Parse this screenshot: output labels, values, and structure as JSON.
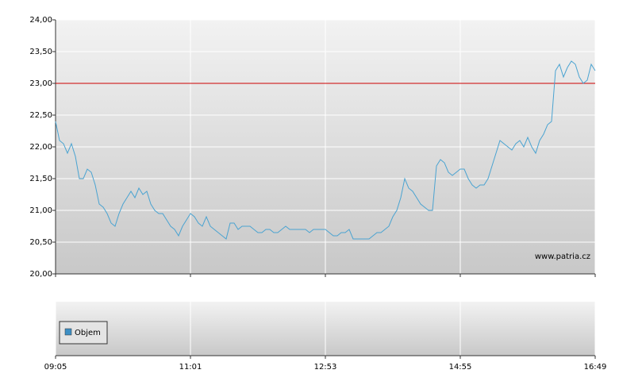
{
  "chart_data": [
    {
      "type": "line",
      "color": "#4aa3d1",
      "source": "www.patria.cz",
      "reference_line": 23,
      "reference_color": "#cc0000",
      "xlim": [
        0,
        136
      ],
      "xticks": [
        {
          "value": 0,
          "label": "09:05"
        },
        {
          "value": 34,
          "label": "11:01"
        },
        {
          "value": 68,
          "label": "12:53"
        },
        {
          "value": 102,
          "label": "14:55"
        },
        {
          "value": 136,
          "label": "16:49"
        }
      ],
      "ylim": [
        20,
        24
      ],
      "yticks": [
        {
          "value": 20,
          "label": "20,00"
        },
        {
          "value": 20.5,
          "label": "20,50"
        },
        {
          "value": 21,
          "label": "21,00"
        },
        {
          "value": 21.5,
          "label": "21,50"
        },
        {
          "value": 22,
          "label": "22,00"
        },
        {
          "value": 22.5,
          "label": "22,50"
        },
        {
          "value": 23,
          "label": "23,00"
        },
        {
          "value": 23.5,
          "label": "23,50"
        },
        {
          "value": 24,
          "label": "24,00"
        }
      ],
      "grid": true,
      "values": [
        22.4,
        22.1,
        22.05,
        21.9,
        22.05,
        21.85,
        21.5,
        21.5,
        21.65,
        21.6,
        21.4,
        21.1,
        21.05,
        20.95,
        20.8,
        20.75,
        20.95,
        21.1,
        21.2,
        21.3,
        21.2,
        21.35,
        21.25,
        21.3,
        21.1,
        21.0,
        20.95,
        20.95,
        20.85,
        20.75,
        20.7,
        20.6,
        20.75,
        20.85,
        20.95,
        20.9,
        20.8,
        20.75,
        20.9,
        20.75,
        20.7,
        20.65,
        20.6,
        20.55,
        20.8,
        20.8,
        20.7,
        20.75,
        20.75,
        20.75,
        20.7,
        20.65,
        20.65,
        20.7,
        20.7,
        20.65,
        20.65,
        20.7,
        20.75,
        20.7,
        20.7,
        20.7,
        20.7,
        20.7,
        20.65,
        20.7,
        20.7,
        20.7,
        20.7,
        20.65,
        20.6,
        20.6,
        20.65,
        20.65,
        20.7,
        20.55,
        20.55,
        20.55,
        20.55,
        20.55,
        20.6,
        20.65,
        20.65,
        20.7,
        20.75,
        20.9,
        21.0,
        21.2,
        21.5,
        21.35,
        21.3,
        21.2,
        21.1,
        21.05,
        21.0,
        21.0,
        21.7,
        21.8,
        21.75,
        21.6,
        21.55,
        21.6,
        21.65,
        21.65,
        21.5,
        21.4,
        21.35,
        21.4,
        21.4,
        21.5,
        21.7,
        21.9,
        22.1,
        22.05,
        22.0,
        21.95,
        22.05,
        22.1,
        22.0,
        22.15,
        22.0,
        21.9,
        22.1,
        22.2,
        22.35,
        22.4,
        23.2,
        23.3,
        23.1,
        23.25,
        23.35,
        23.3,
        23.1,
        23.0,
        23.05,
        23.3,
        23.2
      ]
    },
    {
      "type": "bar",
      "series": [
        {
          "name": "Objem",
          "color": "#3d8fc4",
          "values": []
        }
      ]
    }
  ]
}
